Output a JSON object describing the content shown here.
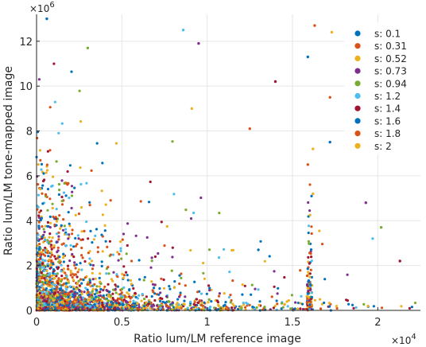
{
  "chart_data": {
    "type": "scatter",
    "title": "",
    "xlabel": "Ratio lum/LM reference image",
    "ylabel": "Ratio lum/LM tone-mapped image",
    "xlim": [
      0,
      22500
    ],
    "ylim": [
      0,
      13200000
    ],
    "x_ticks": [
      0,
      5000,
      10000,
      15000,
      20000
    ],
    "x_tick_labels": [
      "0",
      "0.5",
      "1",
      "1.5",
      "2"
    ],
    "x_exponent_label": "×10^4",
    "y_ticks": [
      0,
      2000000,
      4000000,
      6000000,
      8000000,
      10000000,
      12000000
    ],
    "y_tick_labels": [
      "0",
      "2",
      "4",
      "6",
      "8",
      "10",
      "12"
    ],
    "y_exponent_label": "×10^6",
    "grid": true,
    "legend_position": "top-right",
    "series": [
      {
        "name": "s: 0.1",
        "color": "#0072BD"
      },
      {
        "name": "s: 0.31",
        "color": "#D95319"
      },
      {
        "name": "s: 0.52",
        "color": "#EDB120"
      },
      {
        "name": "s: 0.73",
        "color": "#7E2F8E"
      },
      {
        "name": "s: 0.94",
        "color": "#77AC30"
      },
      {
        "name": "s: 1.2",
        "color": "#4DBEEE"
      },
      {
        "name": "s: 1.4",
        "color": "#A2142F"
      },
      {
        "name": "s: 1.6",
        "color": "#0072BD"
      },
      {
        "name": "s: 1.8",
        "color": "#D95319"
      },
      {
        "name": "s: 2",
        "color": "#EDB120"
      }
    ],
    "notable_points": [
      {
        "x": 600,
        "y": 13000000
      },
      {
        "x": 16300,
        "y": 12700000
      },
      {
        "x": 17300,
        "y": 12400000
      },
      {
        "x": 9500,
        "y": 11900000
      },
      {
        "x": 3000,
        "y": 11700000
      },
      {
        "x": 8600,
        "y": 12500000
      },
      {
        "x": 14000,
        "y": 10200000
      },
      {
        "x": 15900,
        "y": 11300000
      },
      {
        "x": 17200,
        "y": 9500000
      },
      {
        "x": 16200,
        "y": 7200000
      },
      {
        "x": 17200,
        "y": 7500000
      },
      {
        "x": 15900,
        "y": 6500000
      },
      {
        "x": 16200,
        "y": 5200000
      },
      {
        "x": 19300,
        "y": 4800000
      },
      {
        "x": 20200,
        "y": 3700000
      },
      {
        "x": 19700,
        "y": 3200000
      },
      {
        "x": 21300,
        "y": 2200000
      },
      {
        "x": 13000,
        "y": 2700000
      },
      {
        "x": 12500,
        "y": 8100000
      },
      {
        "x": 9100,
        "y": 9000000
      }
    ],
    "distribution_note": "thousands of points densely clustered near the origin, decaying with increasing x and y"
  }
}
